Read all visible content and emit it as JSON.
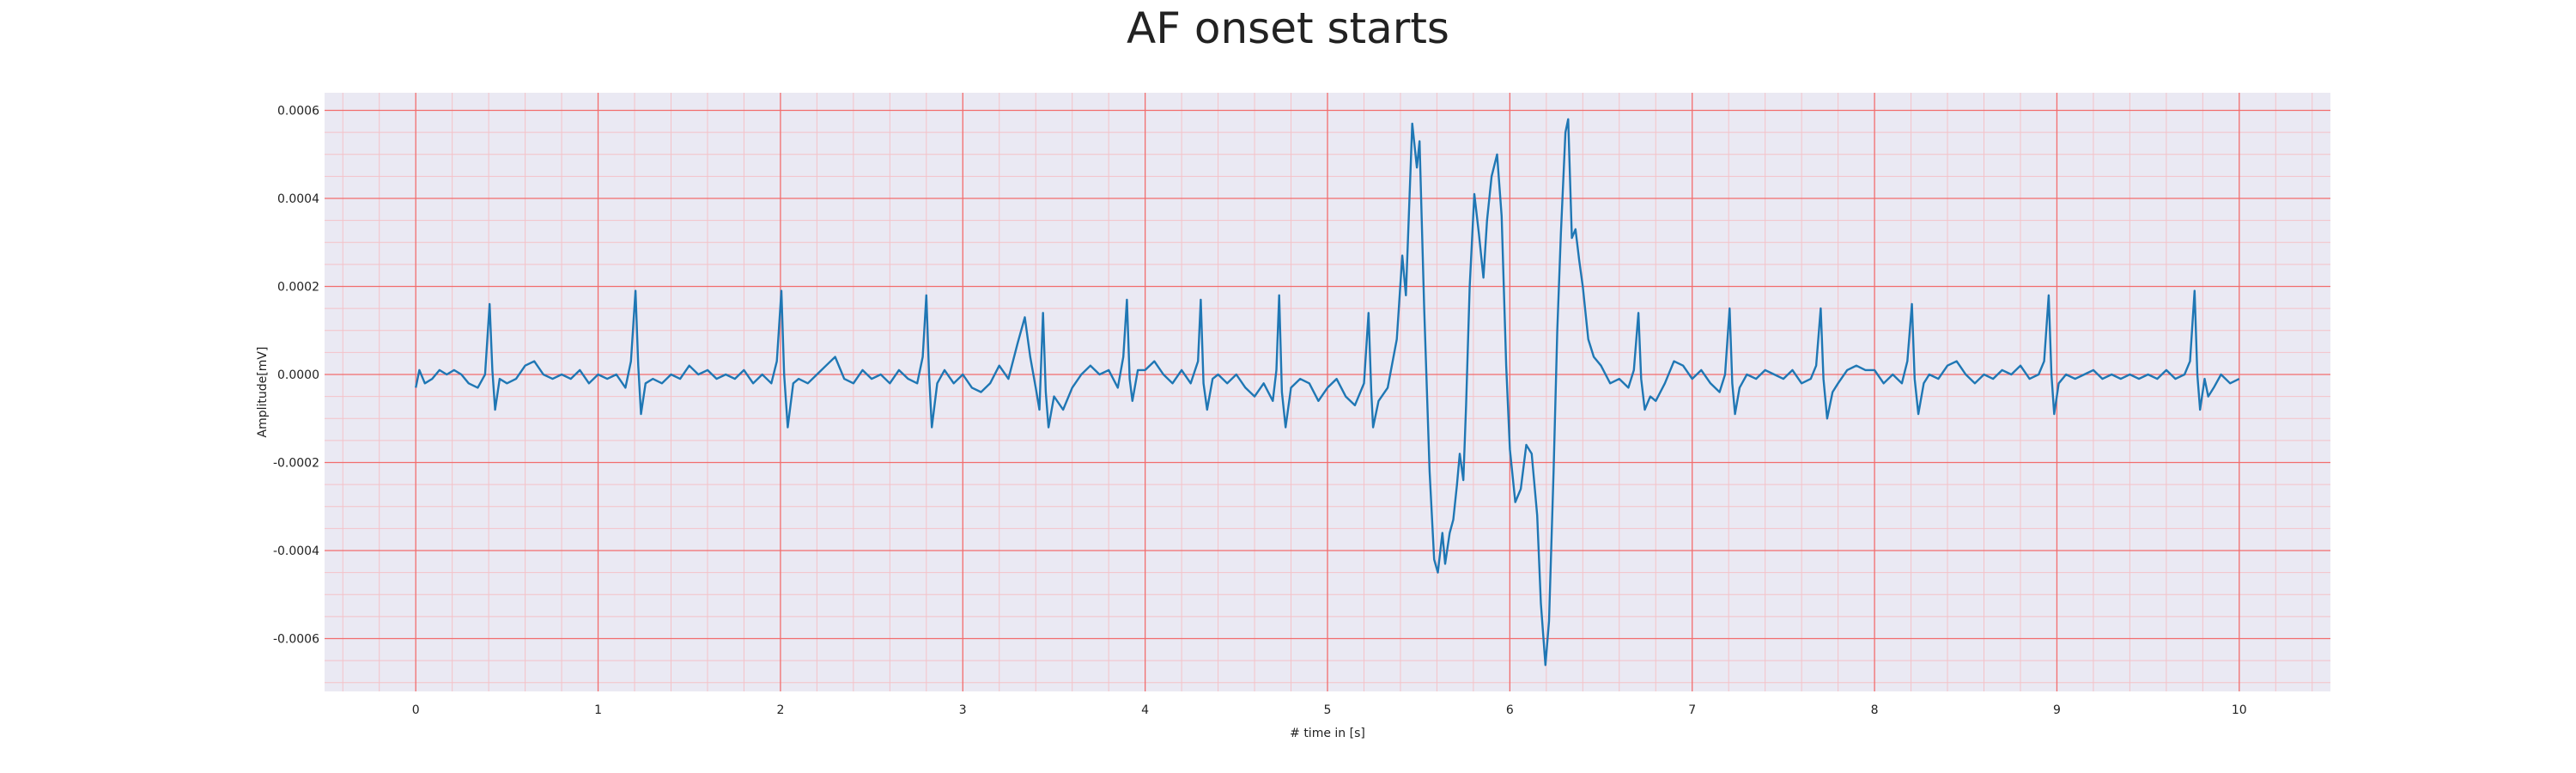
{
  "chart_data": {
    "type": "line",
    "title": "AF onset starts",
    "xlabel": "# time in [s]",
    "ylabel": "Amplitude[mV]",
    "xlim": [
      -0.5,
      10.5
    ],
    "ylim": [
      -0.00072,
      0.00064
    ],
    "xticks": [
      0,
      1,
      2,
      3,
      4,
      5,
      6,
      7,
      8,
      9,
      10
    ],
    "xtick_labels": [
      "0",
      "1",
      "2",
      "3",
      "4",
      "5",
      "6",
      "7",
      "8",
      "9",
      "10"
    ],
    "yticks": [
      0.0006,
      0.0004,
      0.0002,
      0.0,
      -0.0002,
      -0.0004,
      -0.0006
    ],
    "ytick_labels": [
      "0.0006",
      "0.0004",
      "0.0002",
      "0.0000",
      "-0.0002",
      "-0.0004",
      "-0.0006"
    ],
    "grid": true,
    "minor_grid": true,
    "colors": {
      "line": "#1f77b4",
      "plot_background": "#eae9f3",
      "major_grid": "#f26d6d",
      "minor_grid": "#f4c2c8",
      "text": "#222222"
    },
    "series": [
      {
        "values": [
          [
            0.0,
            -3e-05
          ],
          [
            0.02,
            1e-05
          ],
          [
            0.05,
            -2e-05
          ],
          [
            0.09,
            -1e-05
          ],
          [
            0.13,
            1e-05
          ],
          [
            0.17,
            0.0
          ],
          [
            0.21,
            1e-05
          ],
          [
            0.25,
            0.0
          ],
          [
            0.29,
            -2e-05
          ],
          [
            0.34,
            -3e-05
          ],
          [
            0.38,
            0.0
          ],
          [
            0.405,
            0.00016
          ],
          [
            0.42,
            1e-05
          ],
          [
            0.435,
            -8e-05
          ],
          [
            0.46,
            -1e-05
          ],
          [
            0.5,
            -2e-05
          ],
          [
            0.55,
            -1e-05
          ],
          [
            0.6,
            2e-05
          ],
          [
            0.65,
            3e-05
          ],
          [
            0.7,
            0.0
          ],
          [
            0.75,
            -1e-05
          ],
          [
            0.8,
            0.0
          ],
          [
            0.85,
            -1e-05
          ],
          [
            0.9,
            1e-05
          ],
          [
            0.95,
            -2e-05
          ],
          [
            1.0,
            0.0
          ],
          [
            1.05,
            -1e-05
          ],
          [
            1.1,
            0.0
          ],
          [
            1.15,
            -3e-05
          ],
          [
            1.18,
            3e-05
          ],
          [
            1.205,
            0.00019
          ],
          [
            1.22,
            2e-05
          ],
          [
            1.235,
            -9e-05
          ],
          [
            1.26,
            -2e-05
          ],
          [
            1.3,
            -1e-05
          ],
          [
            1.35,
            -2e-05
          ],
          [
            1.4,
            0.0
          ],
          [
            1.45,
            -1e-05
          ],
          [
            1.5,
            2e-05
          ],
          [
            1.55,
            0.0
          ],
          [
            1.6,
            1e-05
          ],
          [
            1.65,
            -1e-05
          ],
          [
            1.7,
            0.0
          ],
          [
            1.75,
            -1e-05
          ],
          [
            1.8,
            1e-05
          ],
          [
            1.85,
            -2e-05
          ],
          [
            1.9,
            0.0
          ],
          [
            1.95,
            -2e-05
          ],
          [
            1.98,
            3e-05
          ],
          [
            2.005,
            0.00019
          ],
          [
            2.02,
            0.0
          ],
          [
            2.04,
            -0.00012
          ],
          [
            2.07,
            -2e-05
          ],
          [
            2.1,
            -1e-05
          ],
          [
            2.15,
            -2e-05
          ],
          [
            2.2,
            0.0
          ],
          [
            2.25,
            2e-05
          ],
          [
            2.3,
            4e-05
          ],
          [
            2.35,
            -1e-05
          ],
          [
            2.4,
            -2e-05
          ],
          [
            2.45,
            1e-05
          ],
          [
            2.5,
            -1e-05
          ],
          [
            2.55,
            0.0
          ],
          [
            2.6,
            -2e-05
          ],
          [
            2.65,
            1e-05
          ],
          [
            2.7,
            -1e-05
          ],
          [
            2.75,
            -2e-05
          ],
          [
            2.78,
            4e-05
          ],
          [
            2.8,
            0.00018
          ],
          [
            2.815,
            0.0
          ],
          [
            2.83,
            -0.00012
          ],
          [
            2.86,
            -2e-05
          ],
          [
            2.9,
            1e-05
          ],
          [
            2.95,
            -2e-05
          ],
          [
            3.0,
            0.0
          ],
          [
            3.05,
            -3e-05
          ],
          [
            3.1,
            -4e-05
          ],
          [
            3.15,
            -2e-05
          ],
          [
            3.2,
            2e-05
          ],
          [
            3.25,
            -1e-05
          ],
          [
            3.3,
            7e-05
          ],
          [
            3.34,
            0.00013
          ],
          [
            3.37,
            4e-05
          ],
          [
            3.4,
            -3e-05
          ],
          [
            3.42,
            -8e-05
          ],
          [
            3.44,
            0.00014
          ],
          [
            3.455,
            -4e-05
          ],
          [
            3.47,
            -0.00012
          ],
          [
            3.5,
            -5e-05
          ],
          [
            3.55,
            -8e-05
          ],
          [
            3.6,
            -3e-05
          ],
          [
            3.65,
            0.0
          ],
          [
            3.7,
            2e-05
          ],
          [
            3.75,
            0.0
          ],
          [
            3.8,
            1e-05
          ],
          [
            3.85,
            -3e-05
          ],
          [
            3.88,
            4e-05
          ],
          [
            3.9,
            0.00017
          ],
          [
            3.915,
            -1e-05
          ],
          [
            3.93,
            -6e-05
          ],
          [
            3.96,
            1e-05
          ],
          [
            4.0,
            1e-05
          ],
          [
            4.05,
            3e-05
          ],
          [
            4.1,
            0.0
          ],
          [
            4.15,
            -2e-05
          ],
          [
            4.2,
            1e-05
          ],
          [
            4.25,
            -2e-05
          ],
          [
            4.29,
            3e-05
          ],
          [
            4.305,
            0.00017
          ],
          [
            4.32,
            -2e-05
          ],
          [
            4.34,
            -8e-05
          ],
          [
            4.37,
            -1e-05
          ],
          [
            4.4,
            0.0
          ],
          [
            4.45,
            -2e-05
          ],
          [
            4.5,
            0.0
          ],
          [
            4.55,
            -3e-05
          ],
          [
            4.6,
            -5e-05
          ],
          [
            4.65,
            -2e-05
          ],
          [
            4.7,
            -6e-05
          ],
          [
            4.72,
            1e-05
          ],
          [
            4.735,
            0.00018
          ],
          [
            4.75,
            -4e-05
          ],
          [
            4.77,
            -0.00012
          ],
          [
            4.8,
            -3e-05
          ],
          [
            4.85,
            -1e-05
          ],
          [
            4.9,
            -2e-05
          ],
          [
            4.95,
            -6e-05
          ],
          [
            5.0,
            -3e-05
          ],
          [
            5.05,
            -1e-05
          ],
          [
            5.1,
            -5e-05
          ],
          [
            5.15,
            -7e-05
          ],
          [
            5.2,
            -2e-05
          ],
          [
            5.225,
            0.00014
          ],
          [
            5.24,
            -4e-05
          ],
          [
            5.25,
            -0.00012
          ],
          [
            5.28,
            -6e-05
          ],
          [
            5.33,
            -3e-05
          ],
          [
            5.38,
            8e-05
          ],
          [
            5.41,
            0.00027
          ],
          [
            5.43,
            0.00018
          ],
          [
            5.465,
            0.00057
          ],
          [
            5.49,
            0.00047
          ],
          [
            5.505,
            0.00053
          ],
          [
            5.53,
            0.00015
          ],
          [
            5.56,
            -0.00022
          ],
          [
            5.585,
            -0.00042
          ],
          [
            5.605,
            -0.00045
          ],
          [
            5.63,
            -0.00036
          ],
          [
            5.645,
            -0.00043
          ],
          [
            5.67,
            -0.00036
          ],
          [
            5.69,
            -0.00033
          ],
          [
            5.71,
            -0.00025
          ],
          [
            5.725,
            -0.00018
          ],
          [
            5.745,
            -0.00024
          ],
          [
            5.76,
            -7e-05
          ],
          [
            5.78,
            0.0002
          ],
          [
            5.805,
            0.00041
          ],
          [
            5.83,
            0.00032
          ],
          [
            5.855,
            0.00022
          ],
          [
            5.875,
            0.00035
          ],
          [
            5.9,
            0.00045
          ],
          [
            5.93,
            0.0005
          ],
          [
            5.955,
            0.00036
          ],
          [
            5.98,
            2e-05
          ],
          [
            6.0,
            -0.00017
          ],
          [
            6.03,
            -0.00029
          ],
          [
            6.06,
            -0.00026
          ],
          [
            6.09,
            -0.00016
          ],
          [
            6.12,
            -0.00018
          ],
          [
            6.15,
            -0.00032
          ],
          [
            6.17,
            -0.00052
          ],
          [
            6.195,
            -0.00066
          ],
          [
            6.215,
            -0.00056
          ],
          [
            6.24,
            -0.00022
          ],
          [
            6.26,
            0.0001
          ],
          [
            6.28,
            0.00032
          ],
          [
            6.305,
            0.00055
          ],
          [
            6.32,
            0.00058
          ],
          [
            6.34,
            0.00031
          ],
          [
            6.36,
            0.00033
          ],
          [
            6.38,
            0.00026
          ],
          [
            6.4,
            0.0002
          ],
          [
            6.43,
            8e-05
          ],
          [
            6.46,
            4e-05
          ],
          [
            6.5,
            2e-05
          ],
          [
            6.55,
            -2e-05
          ],
          [
            6.6,
            -1e-05
          ],
          [
            6.65,
            -3e-05
          ],
          [
            6.68,
            1e-05
          ],
          [
            6.705,
            0.00014
          ],
          [
            6.72,
            -1e-05
          ],
          [
            6.74,
            -8e-05
          ],
          [
            6.77,
            -5e-05
          ],
          [
            6.8,
            -6e-05
          ],
          [
            6.85,
            -2e-05
          ],
          [
            6.9,
            3e-05
          ],
          [
            6.95,
            2e-05
          ],
          [
            7.0,
            -1e-05
          ],
          [
            7.05,
            1e-05
          ],
          [
            7.1,
            -2e-05
          ],
          [
            7.15,
            -4e-05
          ],
          [
            7.18,
            0.0
          ],
          [
            7.205,
            0.00015
          ],
          [
            7.22,
            -2e-05
          ],
          [
            7.235,
            -9e-05
          ],
          [
            7.26,
            -3e-05
          ],
          [
            7.3,
            0.0
          ],
          [
            7.35,
            -1e-05
          ],
          [
            7.4,
            1e-05
          ],
          [
            7.45,
            0.0
          ],
          [
            7.5,
            -1e-05
          ],
          [
            7.55,
            1e-05
          ],
          [
            7.6,
            -2e-05
          ],
          [
            7.65,
            -1e-05
          ],
          [
            7.68,
            2e-05
          ],
          [
            7.705,
            0.00015
          ],
          [
            7.72,
            -1e-05
          ],
          [
            7.74,
            -0.0001
          ],
          [
            7.77,
            -4e-05
          ],
          [
            7.8,
            -2e-05
          ],
          [
            7.85,
            1e-05
          ],
          [
            7.9,
            2e-05
          ],
          [
            7.95,
            1e-05
          ],
          [
            8.0,
            1e-05
          ],
          [
            8.05,
            -2e-05
          ],
          [
            8.1,
            0.0
          ],
          [
            8.15,
            -2e-05
          ],
          [
            8.18,
            3e-05
          ],
          [
            8.205,
            0.00016
          ],
          [
            8.22,
            -1e-05
          ],
          [
            8.24,
            -9e-05
          ],
          [
            8.27,
            -2e-05
          ],
          [
            8.3,
            0.0
          ],
          [
            8.35,
            -1e-05
          ],
          [
            8.4,
            2e-05
          ],
          [
            8.45,
            3e-05
          ],
          [
            8.5,
            0.0
          ],
          [
            8.55,
            -2e-05
          ],
          [
            8.6,
            0.0
          ],
          [
            8.65,
            -1e-05
          ],
          [
            8.7,
            1e-05
          ],
          [
            8.75,
            0.0
          ],
          [
            8.8,
            2e-05
          ],
          [
            8.85,
            -1e-05
          ],
          [
            8.9,
            0.0
          ],
          [
            8.93,
            3e-05
          ],
          [
            8.955,
            0.00018
          ],
          [
            8.97,
            0.0
          ],
          [
            8.985,
            -9e-05
          ],
          [
            9.01,
            -2e-05
          ],
          [
            9.05,
            0.0
          ],
          [
            9.1,
            -1e-05
          ],
          [
            9.15,
            0.0
          ],
          [
            9.2,
            1e-05
          ],
          [
            9.25,
            -1e-05
          ],
          [
            9.3,
            0.0
          ],
          [
            9.35,
            -1e-05
          ],
          [
            9.4,
            0.0
          ],
          [
            9.45,
            -1e-05
          ],
          [
            9.5,
            0.0
          ],
          [
            9.55,
            -1e-05
          ],
          [
            9.6,
            1e-05
          ],
          [
            9.65,
            -1e-05
          ],
          [
            9.7,
            0.0
          ],
          [
            9.73,
            3e-05
          ],
          [
            9.755,
            0.00019
          ],
          [
            9.77,
            0.0
          ],
          [
            9.785,
            -8e-05
          ],
          [
            9.81,
            -1e-05
          ],
          [
            9.83,
            -5e-05
          ],
          [
            9.86,
            -3e-05
          ],
          [
            9.9,
            0.0
          ],
          [
            9.95,
            -2e-05
          ],
          [
            10.0,
            -1e-05
          ]
        ]
      }
    ]
  }
}
